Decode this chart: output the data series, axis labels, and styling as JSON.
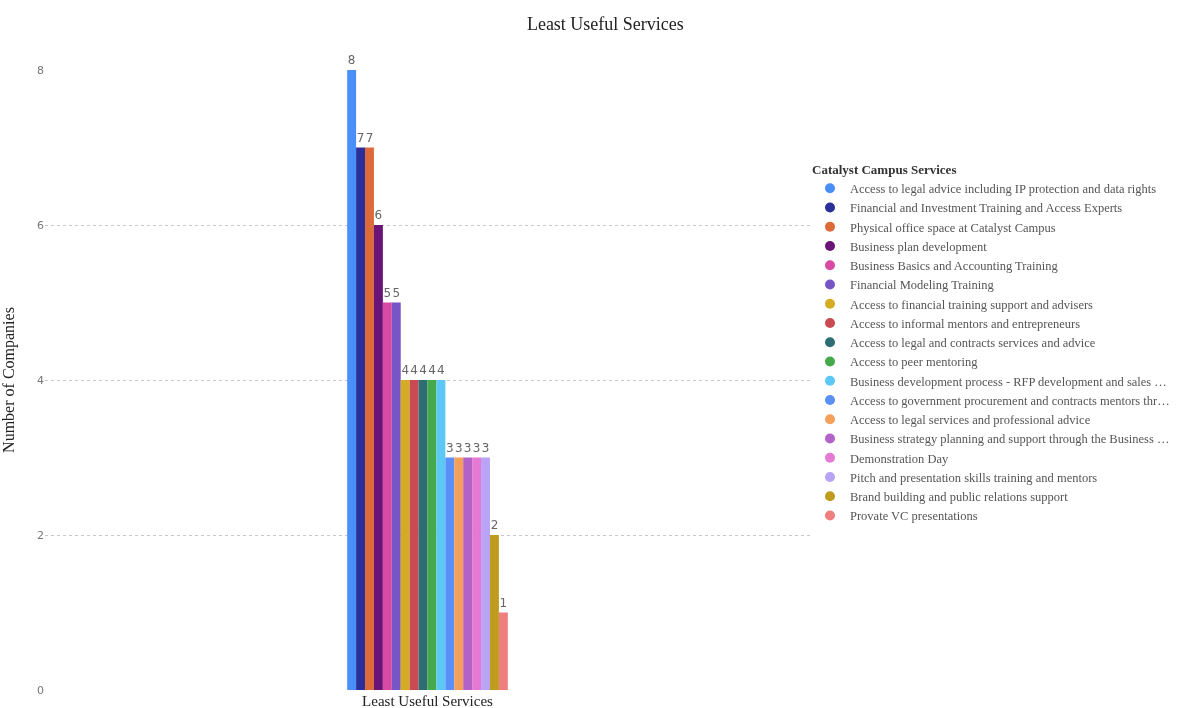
{
  "chart_data": {
    "type": "bar",
    "title": "Least Useful Services",
    "ylabel": "Number of Companies",
    "legend_title": "Catalyst Campus Services",
    "categories": [
      "Least Useful Services"
    ],
    "series": [
      {
        "name": "Access to legal advice including IP protection and data rights",
        "color": "#4a8ff8",
        "values": [
          8
        ]
      },
      {
        "name": "Financial and Investment Training and Access Experts",
        "color": "#2a2f9a",
        "values": [
          7
        ]
      },
      {
        "name": "Physical office space at Catalyst Campus",
        "color": "#dd6b3a",
        "values": [
          7
        ]
      },
      {
        "name": "Business plan development",
        "color": "#6a1478",
        "values": [
          6
        ]
      },
      {
        "name": "Business Basics and Accounting Training",
        "color": "#d84aa3",
        "values": [
          5
        ]
      },
      {
        "name": "Financial Modeling Training",
        "color": "#7755c6",
        "values": [
          5
        ]
      },
      {
        "name": "Access to financial training support and advisers",
        "color": "#d4ac22",
        "values": [
          4
        ]
      },
      {
        "name": "Access to informal mentors and entrepreneurs",
        "color": "#c94a52",
        "values": [
          4
        ]
      },
      {
        "name": "Access to legal and contracts services and advice",
        "color": "#2e6e72",
        "values": [
          4
        ]
      },
      {
        "name": "Access to peer mentoring",
        "color": "#45a84a",
        "values": [
          4
        ]
      },
      {
        "name": "Business development process - RFP development and sales …",
        "color": "#5bc8f5",
        "values": [
          4
        ]
      },
      {
        "name": "Access to government procurement and contracts mentors thr…",
        "color": "#5b8ff9",
        "values": [
          3
        ]
      },
      {
        "name": "Access to legal services and professional advice",
        "color": "#f4a05b",
        "values": [
          3
        ]
      },
      {
        "name": "Business strategy planning and support through the Business …",
        "color": "#b362c8",
        "values": [
          3
        ]
      },
      {
        "name": "Demonstration Day",
        "color": "#e57ad4",
        "values": [
          3
        ]
      },
      {
        "name": "Pitch and presentation skills training and mentors",
        "color": "#b8a3f5",
        "values": [
          3
        ]
      },
      {
        "name": "Brand building and public relations support",
        "color": "#bf9c1e",
        "values": [
          2
        ]
      },
      {
        "name": "Provate VC presentations",
        "color": "#ef7f7f",
        "values": [
          1
        ]
      }
    ],
    "ylim": [
      0,
      8
    ],
    "yticks": [
      0,
      2,
      4,
      6,
      8
    ],
    "grid": "y",
    "legend": "right",
    "data_labels": true
  }
}
